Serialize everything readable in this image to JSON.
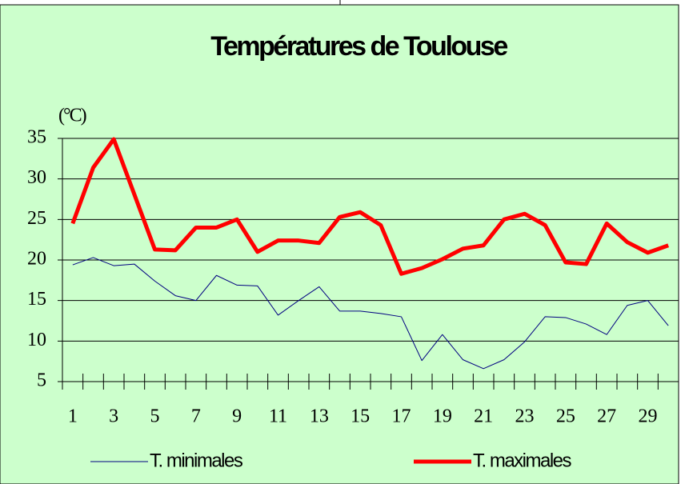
{
  "chart_data": {
    "type": "line",
    "title": "Températures de Toulouse",
    "y_label": "(°C)",
    "categories": [
      "1",
      null,
      "3",
      null,
      "5",
      null,
      "7",
      null,
      "9",
      null,
      "11",
      null,
      "13",
      null,
      "15",
      null,
      "17",
      null,
      "19",
      null,
      "21",
      null,
      "23",
      null,
      "25",
      null,
      "27",
      null,
      "29",
      null
    ],
    "series": [
      {
        "name": "T. minimales",
        "color": "#000080",
        "width": 1,
        "values": [
          19.4,
          20.3,
          19.3,
          19.5,
          17.4,
          15.6,
          15.0,
          18.1,
          16.9,
          16.8,
          13.2,
          15.0,
          16.7,
          13.7,
          13.7,
          13.4,
          13.0,
          7.6,
          10.8,
          7.7,
          6.6,
          7.7,
          9.9,
          13.0,
          12.9,
          12.1,
          10.8,
          14.4,
          15.0,
          11.9
        ]
      },
      {
        "name": "T. maximales",
        "color": "#ff0000",
        "width": 5,
        "values": [
          24.5,
          31.4,
          34.9,
          28.1,
          21.3,
          21.2,
          24.0,
          24.0,
          25.0,
          21.0,
          22.4,
          22.4,
          22.1,
          25.3,
          25.9,
          24.3,
          18.3,
          19.0,
          20.1,
          21.4,
          21.8,
          25.0,
          25.7,
          24.3,
          19.7,
          19.5,
          24.5,
          22.2,
          20.9,
          21.8
        ]
      }
    ],
    "ylim": [
      5,
      35
    ],
    "yticks": [
      5,
      10,
      15,
      20,
      25,
      30,
      35
    ],
    "grid": true,
    "legend": "bottom"
  }
}
